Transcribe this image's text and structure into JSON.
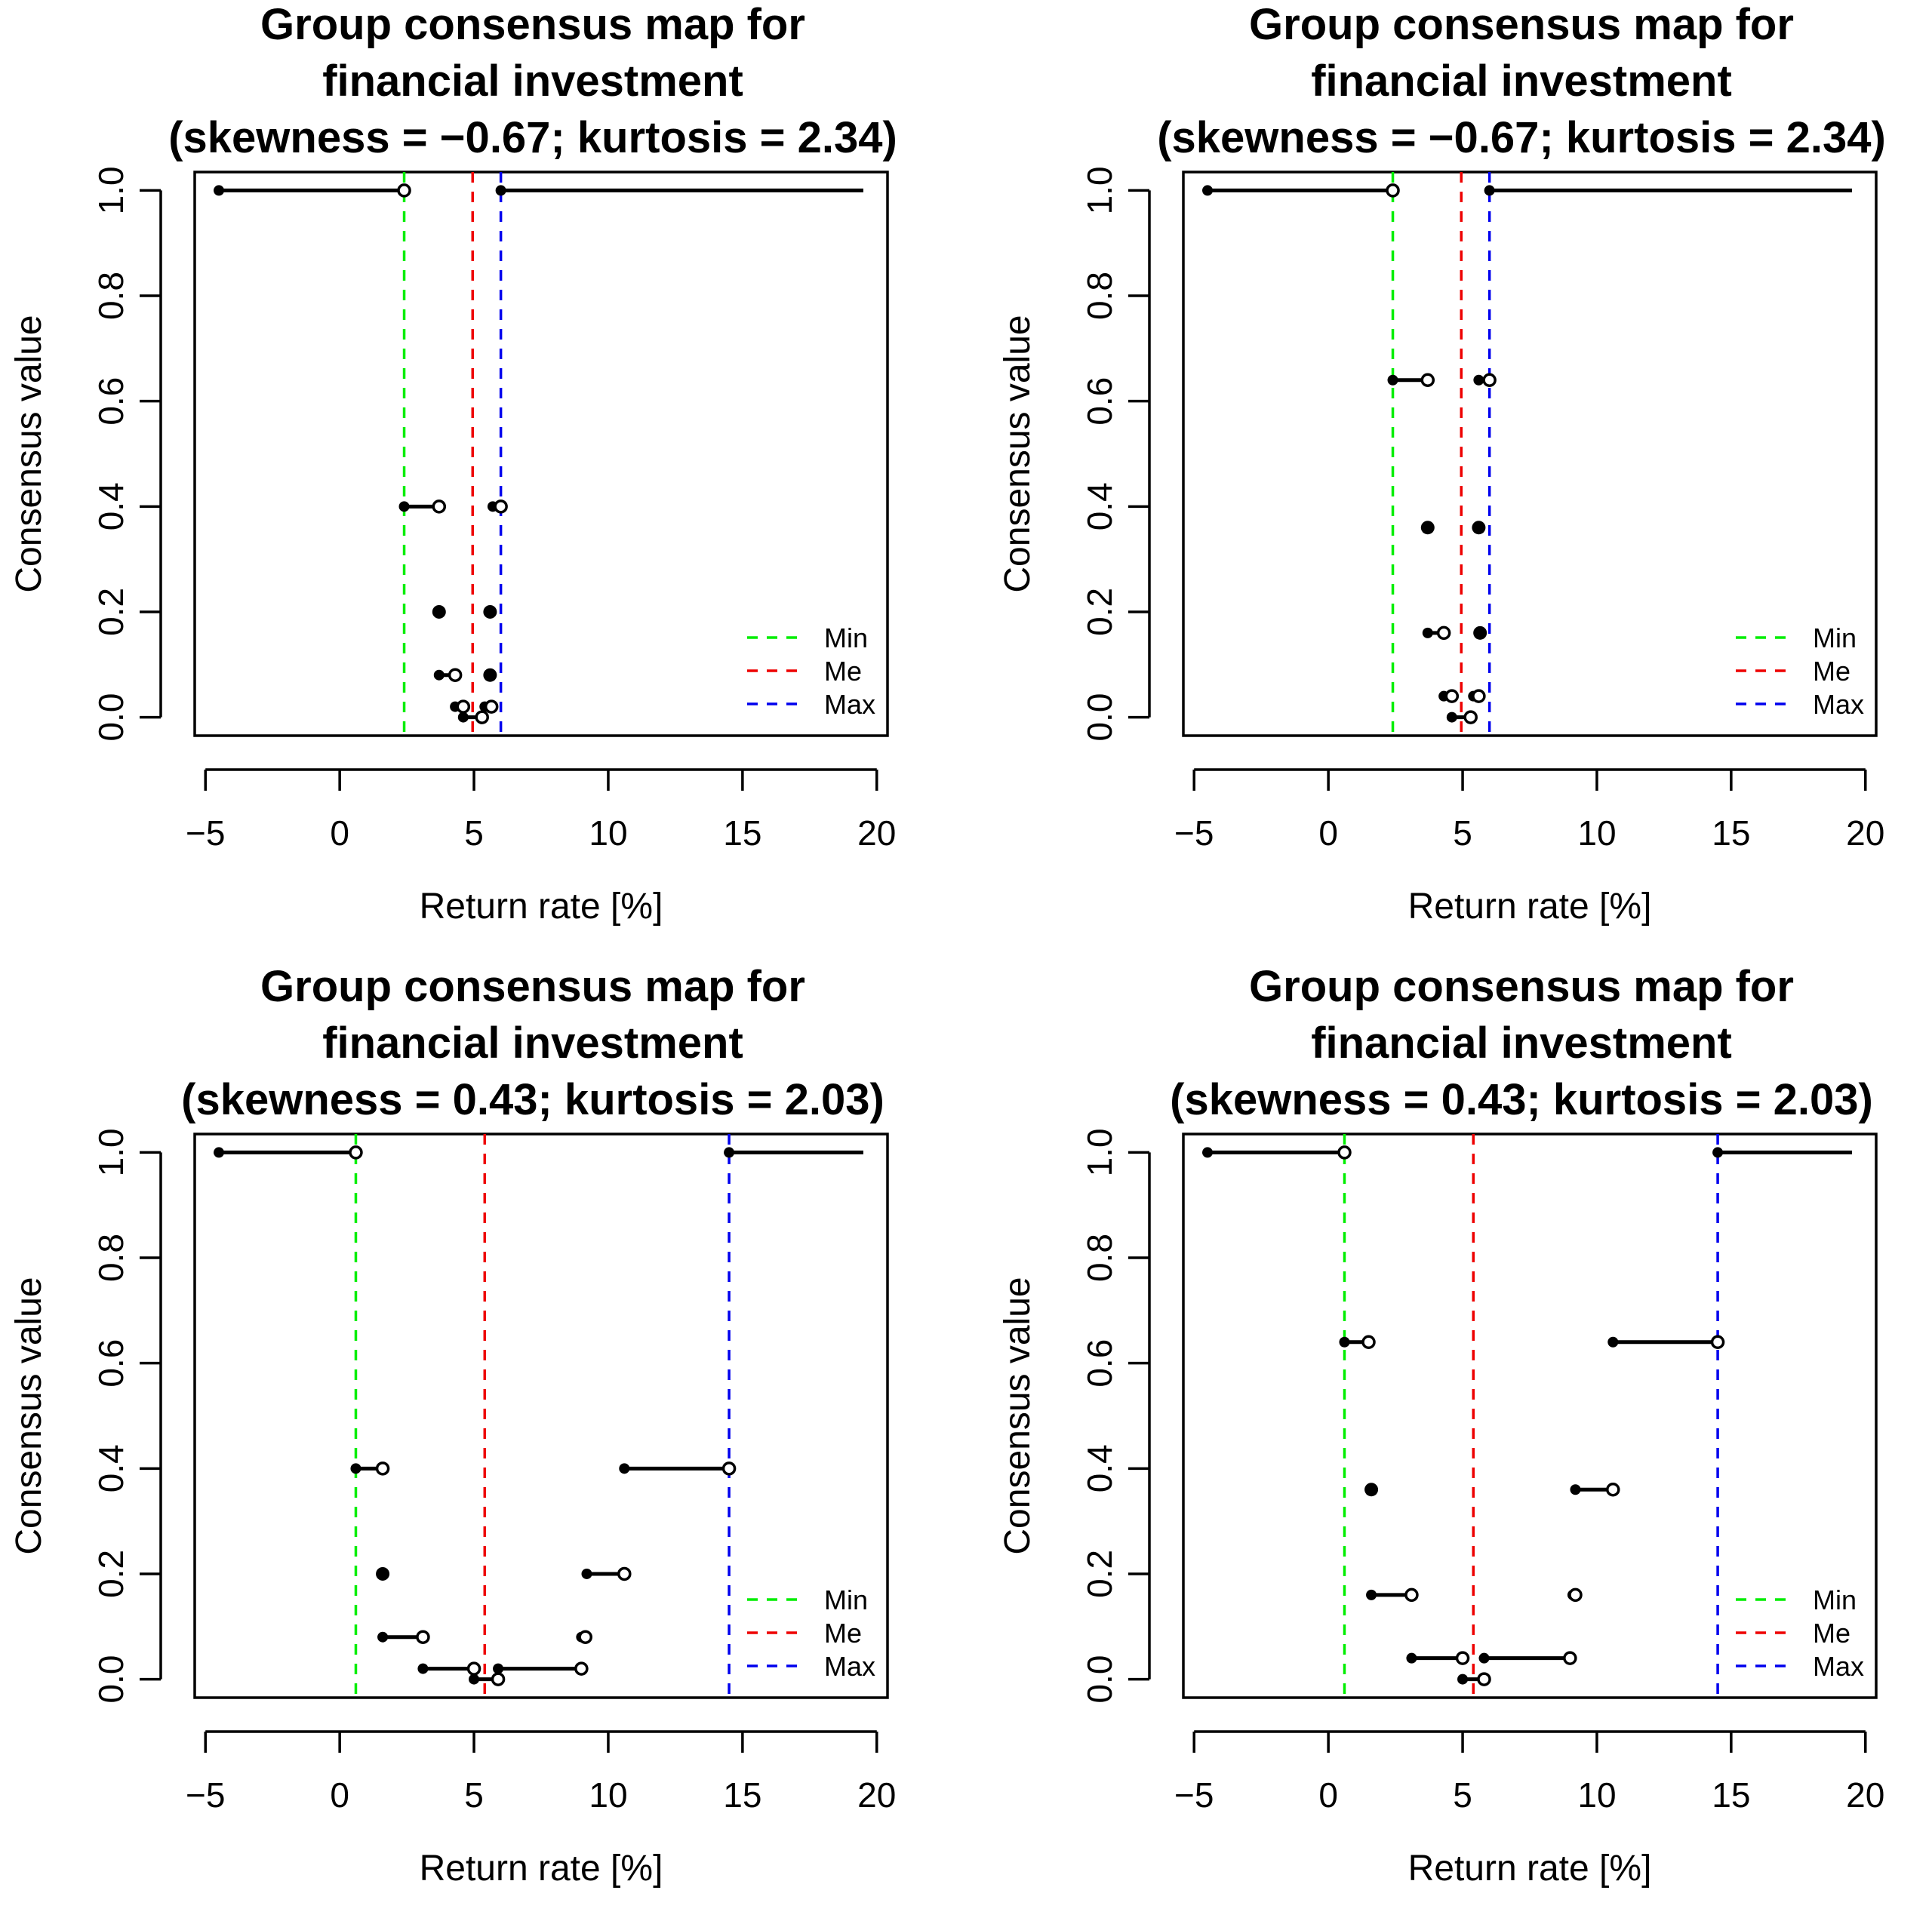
{
  "chart_data": [
    {
      "type": "consensus-map",
      "title": [
        "Group consensus map for",
        "financial investment",
        "(skewness = −0.67; kurtosis = 2.34)"
      ],
      "xlabel": "Return rate [%]",
      "ylabel": "Consensus value",
      "xlim": [
        -5,
        20
      ],
      "ylim": [
        0,
        1
      ],
      "xticks": [
        "−5",
        "0",
        "5",
        "10",
        "15",
        "20"
      ],
      "yticks": [
        "0.0",
        "0.2",
        "0.4",
        "0.6",
        "0.8",
        "1.0"
      ],
      "legend": [
        {
          "label": "Min",
          "color": "#00ee00"
        },
        {
          "label": "Me",
          "color": "#ee0000"
        },
        {
          "label": "Max",
          "color": "#0000ee"
        }
      ],
      "vlines": {
        "min": 2.4,
        "me": 4.95,
        "max": 6.0
      },
      "segments": [
        {
          "x1": -4.5,
          "x2": 2.4,
          "y": 1.0,
          "filled": "left",
          "open": "right"
        },
        {
          "x1": 6.0,
          "x2": 19.5,
          "y": 1.0,
          "filled": "left",
          "open": "none"
        },
        {
          "x1": 2.4,
          "x2": 3.7,
          "y": 0.4,
          "filled": "left",
          "open": "right"
        },
        {
          "x1": 5.7,
          "x2": 6.0,
          "y": 0.4,
          "filled": "left",
          "open": "right"
        },
        {
          "x1": 3.7,
          "x2": 3.7,
          "y": 0.2,
          "filled": "single",
          "open": "none"
        },
        {
          "x1": 5.6,
          "x2": 5.6,
          "y": 0.2,
          "filled": "single",
          "open": "none"
        },
        {
          "x1": 3.7,
          "x2": 4.3,
          "y": 0.08,
          "filled": "left",
          "open": "right"
        },
        {
          "x1": 5.6,
          "x2": 5.6,
          "y": 0.08,
          "filled": "single",
          "open": "none"
        },
        {
          "x1": 4.3,
          "x2": 4.6,
          "y": 0.02,
          "filled": "left",
          "open": "right"
        },
        {
          "x1": 5.4,
          "x2": 5.65,
          "y": 0.02,
          "filled": "left",
          "open": "right"
        },
        {
          "x1": 4.6,
          "x2": 5.3,
          "y": 0.0,
          "filled": "left",
          "open": "right"
        }
      ]
    },
    {
      "type": "consensus-map",
      "title": [
        "Group consensus map for",
        "financial investment",
        "(skewness = −0.67; kurtosis = 2.34)"
      ],
      "xlabel": "Return rate [%]",
      "ylabel": "Consensus value",
      "xlim": [
        -5,
        20
      ],
      "ylim": [
        0,
        1
      ],
      "xticks": [
        "−5",
        "0",
        "5",
        "10",
        "15",
        "20"
      ],
      "yticks": [
        "0.0",
        "0.2",
        "0.4",
        "0.6",
        "0.8",
        "1.0"
      ],
      "legend": [
        {
          "label": "Min",
          "color": "#00ee00"
        },
        {
          "label": "Me",
          "color": "#ee0000"
        },
        {
          "label": "Max",
          "color": "#0000ee"
        }
      ],
      "vlines": {
        "min": 2.4,
        "me": 4.95,
        "max": 6.0
      },
      "segments": [
        {
          "x1": -4.5,
          "x2": 2.4,
          "y": 1.0,
          "filled": "left",
          "open": "right"
        },
        {
          "x1": 6.0,
          "x2": 19.5,
          "y": 1.0,
          "filled": "left",
          "open": "none"
        },
        {
          "x1": 2.4,
          "x2": 3.7,
          "y": 0.64,
          "filled": "left",
          "open": "right"
        },
        {
          "x1": 5.6,
          "x2": 6.0,
          "y": 0.64,
          "filled": "left",
          "open": "right"
        },
        {
          "x1": 3.7,
          "x2": 3.7,
          "y": 0.36,
          "filled": "single",
          "open": "none"
        },
        {
          "x1": 5.6,
          "x2": 5.6,
          "y": 0.36,
          "filled": "single",
          "open": "none"
        },
        {
          "x1": 3.7,
          "x2": 4.3,
          "y": 0.16,
          "filled": "left",
          "open": "right"
        },
        {
          "x1": 5.65,
          "x2": 5.65,
          "y": 0.16,
          "filled": "single",
          "open": "none"
        },
        {
          "x1": 4.3,
          "x2": 4.6,
          "y": 0.04,
          "filled": "left",
          "open": "right"
        },
        {
          "x1": 5.4,
          "x2": 5.6,
          "y": 0.04,
          "filled": "left",
          "open": "right"
        },
        {
          "x1": 4.6,
          "x2": 5.3,
          "y": 0.0,
          "filled": "left",
          "open": "right"
        }
      ]
    },
    {
      "type": "consensus-map",
      "title": [
        "Group consensus map for",
        "financial investment",
        "(skewness = 0.43; kurtosis = 2.03)"
      ],
      "xlabel": "Return rate [%]",
      "ylabel": "Consensus value",
      "xlim": [
        -5,
        20
      ],
      "ylim": [
        0,
        1
      ],
      "xticks": [
        "−5",
        "0",
        "5",
        "10",
        "15",
        "20"
      ],
      "yticks": [
        "0.0",
        "0.2",
        "0.4",
        "0.6",
        "0.8",
        "1.0"
      ],
      "legend": [
        {
          "label": "Min",
          "color": "#00ee00"
        },
        {
          "label": "Me",
          "color": "#ee0000"
        },
        {
          "label": "Max",
          "color": "#0000ee"
        }
      ],
      "vlines": {
        "min": 0.6,
        "me": 5.4,
        "max": 14.5
      },
      "segments": [
        {
          "x1": -4.5,
          "x2": 0.6,
          "y": 1.0,
          "filled": "left",
          "open": "right"
        },
        {
          "x1": 14.5,
          "x2": 19.5,
          "y": 1.0,
          "filled": "left",
          "open": "none"
        },
        {
          "x1": 0.6,
          "x2": 1.6,
          "y": 0.4,
          "filled": "left",
          "open": "right"
        },
        {
          "x1": 10.6,
          "x2": 14.5,
          "y": 0.4,
          "filled": "left",
          "open": "right"
        },
        {
          "x1": 1.6,
          "x2": 1.6,
          "y": 0.2,
          "filled": "single",
          "open": "none"
        },
        {
          "x1": 9.2,
          "x2": 10.6,
          "y": 0.2,
          "filled": "left",
          "open": "right"
        },
        {
          "x1": 1.6,
          "x2": 3.1,
          "y": 0.08,
          "filled": "left",
          "open": "right"
        },
        {
          "x1": 9.0,
          "x2": 9.15,
          "y": 0.08,
          "filled": "left",
          "open": "right"
        },
        {
          "x1": 3.1,
          "x2": 5.0,
          "y": 0.02,
          "filled": "left",
          "open": "right"
        },
        {
          "x1": 5.9,
          "x2": 9.0,
          "y": 0.02,
          "filled": "left",
          "open": "right"
        },
        {
          "x1": 5.0,
          "x2": 5.9,
          "y": 0.0,
          "filled": "left",
          "open": "right"
        }
      ]
    },
    {
      "type": "consensus-map",
      "title": [
        "Group consensus map for",
        "financial investment",
        "(skewness = 0.43; kurtosis = 2.03)"
      ],
      "xlabel": "Return rate [%]",
      "ylabel": "Consensus value",
      "xlim": [
        -5,
        20
      ],
      "ylim": [
        0,
        1
      ],
      "xticks": [
        "−5",
        "0",
        "5",
        "10",
        "15",
        "20"
      ],
      "yticks": [
        "0.0",
        "0.2",
        "0.4",
        "0.6",
        "0.8",
        "1.0"
      ],
      "legend": [
        {
          "label": "Min",
          "color": "#00ee00"
        },
        {
          "label": "Me",
          "color": "#ee0000"
        },
        {
          "label": "Max",
          "color": "#0000ee"
        }
      ],
      "vlines": {
        "min": 0.6,
        "me": 5.4,
        "max": 14.5
      },
      "segments": [
        {
          "x1": -4.5,
          "x2": 0.6,
          "y": 1.0,
          "filled": "left",
          "open": "right"
        },
        {
          "x1": 14.5,
          "x2": 19.5,
          "y": 1.0,
          "filled": "left",
          "open": "none"
        },
        {
          "x1": 0.6,
          "x2": 1.5,
          "y": 0.64,
          "filled": "left",
          "open": "right"
        },
        {
          "x1": 10.6,
          "x2": 14.5,
          "y": 0.64,
          "filled": "left",
          "open": "right"
        },
        {
          "x1": 1.6,
          "x2": 1.6,
          "y": 0.36,
          "filled": "single",
          "open": "none"
        },
        {
          "x1": 9.2,
          "x2": 10.6,
          "y": 0.36,
          "filled": "left",
          "open": "right"
        },
        {
          "x1": 1.6,
          "x2": 3.1,
          "y": 0.16,
          "filled": "left",
          "open": "right"
        },
        {
          "x1": 9.1,
          "x2": 9.2,
          "y": 0.16,
          "filled": "left",
          "open": "right"
        },
        {
          "x1": 3.1,
          "x2": 5.0,
          "y": 0.04,
          "filled": "left",
          "open": "right"
        },
        {
          "x1": 5.8,
          "x2": 9.0,
          "y": 0.04,
          "filled": "left",
          "open": "right"
        },
        {
          "x1": 5.0,
          "x2": 5.8,
          "y": 0.0,
          "filled": "left",
          "open": "right"
        }
      ]
    }
  ]
}
